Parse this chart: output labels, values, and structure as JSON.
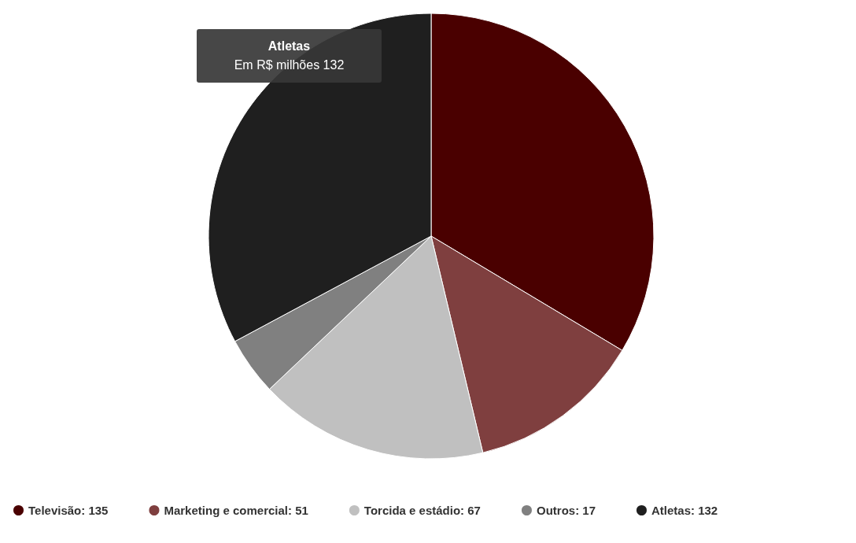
{
  "chart_data": {
    "type": "pie",
    "categories": [
      "Televisão: 135",
      "Marketing e comercial: 51",
      "Torcida e estádio: 67",
      "Outros: 17",
      "Atletas: 132"
    ],
    "values": [
      135,
      51,
      67,
      17,
      132
    ],
    "colors": [
      "#4a0000",
      "#7f3f3f",
      "#c0c0c0",
      "#808080",
      "#1f1f1f"
    ],
    "legend": "bottom left",
    "annotations": [
      "Atletas",
      "Em R$ milhões 132"
    ]
  }
}
